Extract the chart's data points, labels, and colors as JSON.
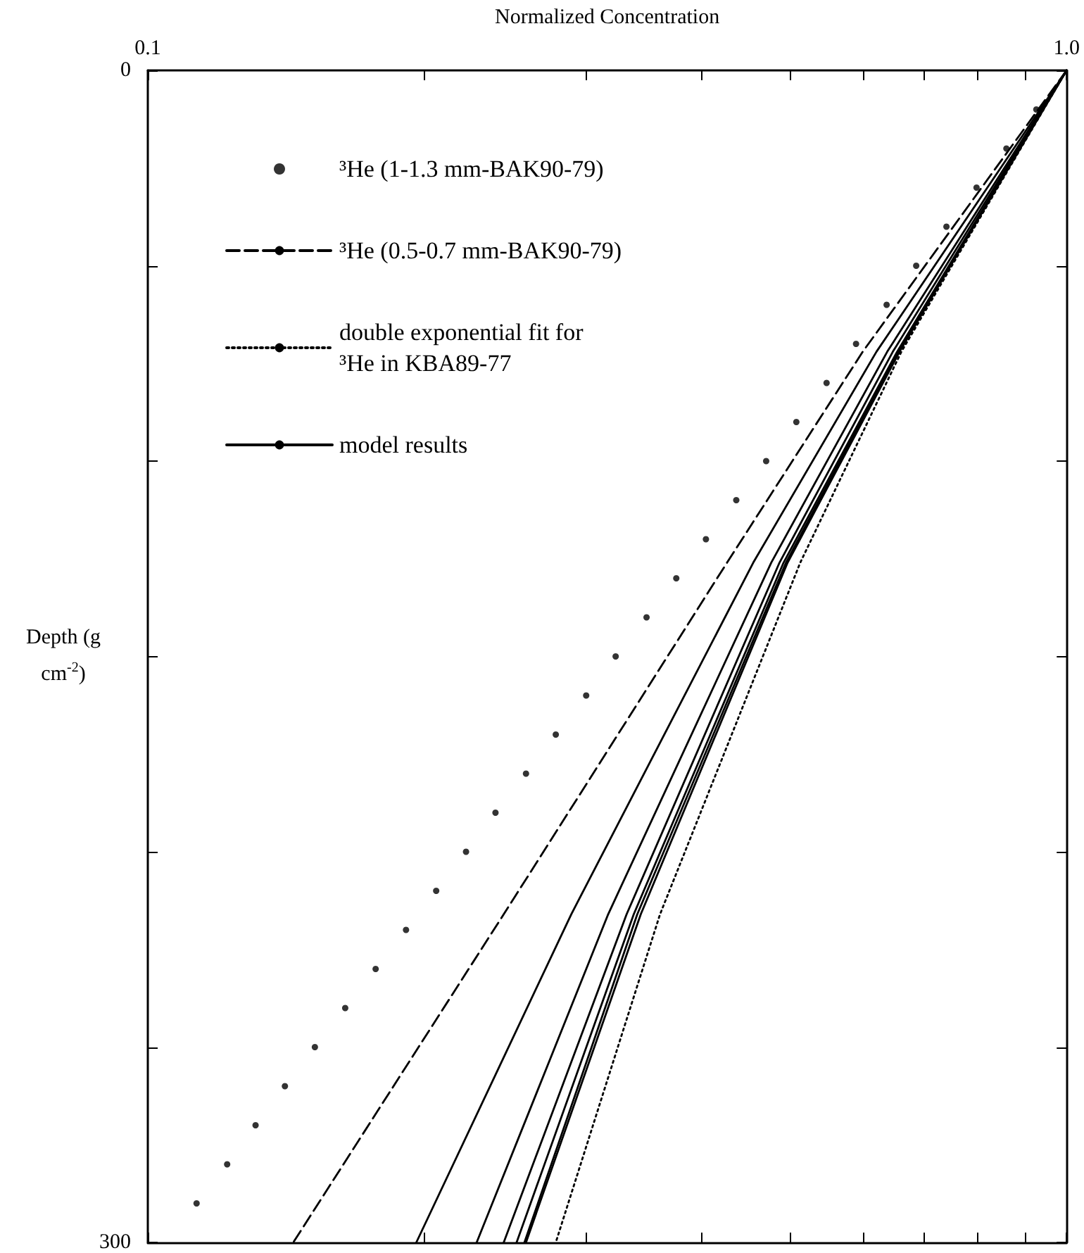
{
  "chart_data": {
    "type": "line",
    "xlabel": "Normalized Concentration",
    "ylabel": "Depth (g cm$^{-2}$)",
    "log": "x",
    "legend": "top left",
    "xlim": [
      0.1,
      1
    ],
    "xticks": [
      0.1,
      {
        "value": 0.2,
        "label": null
      },
      {
        "value": 0.3,
        "label": null
      },
      {
        "value": 0.4,
        "label": null
      },
      {
        "value": 0.5,
        "label": null
      },
      {
        "value": 0.6,
        "label": null
      },
      {
        "value": 0.7,
        "label": null
      },
      {
        "value": 0.8,
        "label": null
      },
      {
        "value": 0.9,
        "label": null
      },
      {
        "value": 1,
        "label": "1.0"
      }
    ],
    "ylim": [
      300,
      0
    ],
    "yticks": [
      0,
      {
        "value": 50,
        "label": null
      },
      {
        "value": 100,
        "label": null
      },
      {
        "value": 150,
        "label": null
      },
      {
        "value": 200,
        "label": null
      },
      {
        "value": 250,
        "label": null
      },
      300
    ],
    "series": [
      {
        "name": "³He (1-1.3 mm-BAK90-79)",
        "type": "scatter",
        "marker": "circle",
        "color": "#000000",
        "x": [
          0.927,
          0.86,
          0.798,
          0.74,
          0.686,
          0.637,
          0.59,
          0.548,
          0.508,
          0.471,
          0.437,
          0.405,
          0.376,
          0.349,
          0.323,
          0.3,
          0.278,
          0.258,
          0.239,
          0.222,
          0.206,
          0.191,
          0.177,
          0.164,
          0.152,
          0.141,
          0.131,
          0.122,
          0.113
        ],
        "values": [
          10,
          20,
          30,
          40,
          50,
          60,
          70,
          80,
          90,
          100,
          110,
          120,
          130,
          140,
          150,
          160,
          170,
          180,
          190,
          200,
          210,
          220,
          230,
          240,
          250,
          260,
          270,
          280,
          290
        ]
      },
      {
        "name": "³He (0.5-0.7 mm-BAK90-79)",
        "line_style": "dashed",
        "marker": "none",
        "color": "#000000",
        "x": [
          1,
          0.6,
          0.427,
          0.244,
          0.144
        ],
        "values": [
          0,
          72,
          126,
          216,
          300
        ]
      },
      {
        "name": "double exponential fit for\n³He in KBA89-77",
        "line_style": "dotted",
        "marker": "none",
        "color": "#000000",
        "x": [
          1,
          0.661,
          0.513,
          0.361,
          0.278
        ],
        "values": [
          0,
          72,
          126,
          216,
          300
        ]
      },
      {
        "name": "model results",
        "line_style": "solid",
        "marker": "none",
        "color": "#000000",
        "x": [
          1,
          0.621,
          0.456,
          0.289,
          0.196
        ],
        "values": [
          0,
          72,
          126,
          216,
          300
        ]
      },
      {
        "line_style": "solid",
        "marker": "none",
        "color": "#000000",
        "x": [
          1,
          0.638,
          0.477,
          0.317,
          0.228
        ],
        "values": [
          0,
          72,
          126,
          216,
          300
        ]
      },
      {
        "line_style": "solid",
        "marker": "none",
        "color": "#000000",
        "x": [
          1,
          0.647,
          0.487,
          0.332,
          0.244
        ],
        "values": [
          0,
          72,
          126,
          216,
          300
        ]
      },
      {
        "line_style": "solid",
        "marker": "none",
        "color": "#000000",
        "x": [
          1,
          0.654,
          0.492,
          0.338,
          0.252
        ],
        "values": [
          0,
          72,
          126,
          216,
          300
        ]
      },
      {
        "line_style": "solid",
        "marker": "none",
        "color": "#000000",
        "x": [
          1,
          0.656,
          0.495,
          0.341,
          0.257
        ],
        "values": [
          0,
          72,
          126,
          216,
          300
        ]
      },
      {
        "line_style": "solid",
        "marker": "none",
        "color": "#000000",
        "x": [
          1,
          0.658,
          0.497,
          0.344,
          0.258
        ],
        "values": [
          0,
          72,
          126,
          216,
          300
        ]
      }
    ]
  }
}
